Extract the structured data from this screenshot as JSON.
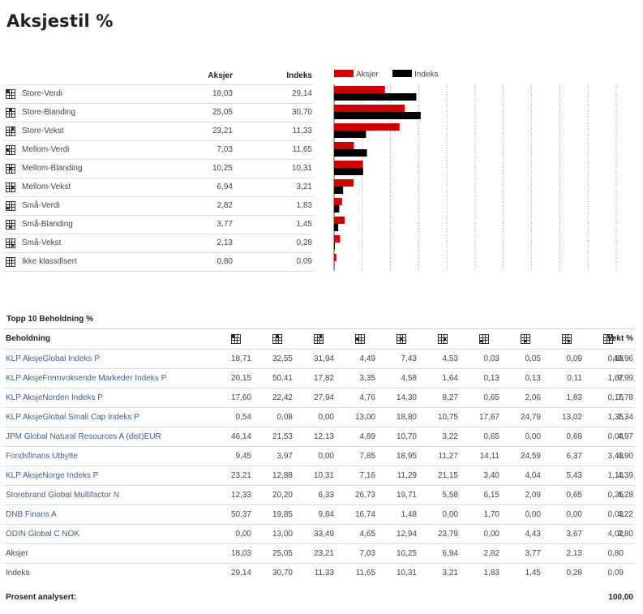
{
  "page_title": "Aksjestil %",
  "style_table": {
    "col_aksjer": "Aksjer",
    "col_indeks": "Indeks",
    "rows": [
      {
        "label": "Store-Verdi",
        "icon": "style-box-large-value-icon",
        "aksjer": "18,03",
        "indeks": "29,14"
      },
      {
        "label": "Store-Blanding",
        "icon": "style-box-large-blend-icon",
        "aksjer": "25,05",
        "indeks": "30,70"
      },
      {
        "label": "Store-Vekst",
        "icon": "style-box-large-growth-icon",
        "aksjer": "23,21",
        "indeks": "11,33"
      },
      {
        "label": "Mellom-Verdi",
        "icon": "style-box-mid-value-icon",
        "aksjer": "7,03",
        "indeks": "11,65"
      },
      {
        "label": "Mellom-Blanding",
        "icon": "style-box-mid-blend-icon",
        "aksjer": "10,25",
        "indeks": "10,31"
      },
      {
        "label": "Mellom-Vekst",
        "icon": "style-box-mid-growth-icon",
        "aksjer": "6,94",
        "indeks": "3,21"
      },
      {
        "label": "Små-Verdi",
        "icon": "style-box-small-value-icon",
        "aksjer": "2,82",
        "indeks": "1,83"
      },
      {
        "label": "Små-Blanding",
        "icon": "style-box-small-blend-icon",
        "aksjer": "3,77",
        "indeks": "1,45"
      },
      {
        "label": "Små-Vekst",
        "icon": "style-box-small-growth-icon",
        "aksjer": "2,13",
        "indeks": "0,28"
      },
      {
        "label": "Ikke klassifisert",
        "icon": "style-box-unclassified-icon",
        "aksjer": "0,80",
        "indeks": "0,09"
      }
    ]
  },
  "chart_data": {
    "type": "bar",
    "orientation": "horizontal",
    "categories": [
      "Store-Verdi",
      "Store-Blanding",
      "Store-Vekst",
      "Mellom-Verdi",
      "Mellom-Blanding",
      "Mellom-Vekst",
      "Små-Verdi",
      "Små-Blanding",
      "Små-Vekst",
      "Ikke klassifisert"
    ],
    "series": [
      {
        "name": "Aksjer",
        "color": "#cc0000",
        "values": [
          18.03,
          25.05,
          23.21,
          7.03,
          10.25,
          6.94,
          2.82,
          3.77,
          2.13,
          0.8
        ]
      },
      {
        "name": "Indeks",
        "color": "#000000",
        "values": [
          29.14,
          30.7,
          11.33,
          11.65,
          10.31,
          3.21,
          1.83,
          1.45,
          0.28,
          0.09
        ]
      }
    ],
    "xlim": [
      0,
      100
    ],
    "xticks": [
      "0",
      "10",
      "20",
      "30",
      "40",
      "50",
      "60",
      "70",
      "80",
      "90",
      "100"
    ],
    "grid": "vertical-dotted",
    "legend_position": "top-left"
  },
  "holdings": {
    "title": "Topp 10 Beholdning %",
    "col_name": "Beholdning",
    "col_weight": "Vekt %",
    "box_icons": [
      "style-box-large-value-icon",
      "style-box-large-blend-icon",
      "style-box-large-growth-icon",
      "style-box-mid-value-icon",
      "style-box-mid-blend-icon",
      "style-box-mid-growth-icon",
      "style-box-small-value-icon",
      "style-box-small-blend-icon",
      "style-box-small-growth-icon",
      "style-box-unclassified-icon"
    ],
    "rows": [
      {
        "name": "KLP AksjeGlobal Indeks P",
        "link": true,
        "values": [
          "18,71",
          "32,55",
          "31,94",
          "4,49",
          "7,43",
          "4,53",
          "0,03",
          "0,05",
          "0,09",
          "0,18"
        ],
        "weight": "40,96"
      },
      {
        "name": "KLP AksjeFremvoksende Markeder Indeks P",
        "link": true,
        "values": [
          "20,15",
          "50,41",
          "17,82",
          "3,35",
          "4,58",
          "1,64",
          "0,13",
          "0,13",
          "0,11",
          "1,67"
        ],
        "weight": "9,99"
      },
      {
        "name": "KLP AksjeNorden Indeks P",
        "link": true,
        "values": [
          "17,60",
          "22,42",
          "27,94",
          "4,76",
          "14,30",
          "8,27",
          "0,65",
          "2,06",
          "1,83",
          "0,16"
        ],
        "weight": "7,78"
      },
      {
        "name": "KLP AksjeGlobal Small Cap Indeks P",
        "link": true,
        "values": [
          "0,54",
          "0,08",
          "0,00",
          "13,00",
          "18,80",
          "10,75",
          "17,67",
          "24,79",
          "13,02",
          "1,35"
        ],
        "weight": "7,34"
      },
      {
        "name": "JPM Global Natural Resources A (dist)EUR",
        "link": true,
        "values": [
          "46,14",
          "21,53",
          "12,13",
          "4,89",
          "10,70",
          "3,22",
          "0,65",
          "0,00",
          "0,69",
          "0,04"
        ],
        "weight": "4,97"
      },
      {
        "name": "Fondsfinans Utbytte",
        "link": true,
        "values": [
          "9,45",
          "3,97",
          "0,00",
          "7,85",
          "18,95",
          "11,27",
          "14,11",
          "24,59",
          "6,37",
          "3,43"
        ],
        "weight": "4,90"
      },
      {
        "name": "KLP AksjeNorge Indeks P",
        "link": true,
        "values": [
          "23,21",
          "12,88",
          "10,31",
          "7,16",
          "11,29",
          "21,15",
          "3,40",
          "4,04",
          "5,43",
          "1,13"
        ],
        "weight": "4,39"
      },
      {
        "name": "Storebrand Global Multifactor N",
        "link": true,
        "values": [
          "12,33",
          "20,20",
          "6,33",
          "26,73",
          "19,71",
          "5,58",
          "6,15",
          "2,09",
          "0,65",
          "0,25"
        ],
        "weight": "4,28"
      },
      {
        "name": "DNB Finans A",
        "link": true,
        "values": [
          "50,37",
          "19,85",
          "9,84",
          "16,74",
          "1,48",
          "0,00",
          "1,70",
          "0,00",
          "0,00",
          "0,03"
        ],
        "weight": "4,22"
      },
      {
        "name": "ODIN Global C NOK",
        "link": true,
        "values": [
          "0,00",
          "13,00",
          "33,49",
          "4,65",
          "12,94",
          "23,79",
          "0,00",
          "4,43",
          "3,67",
          "4,02"
        ],
        "weight": "3,80"
      },
      {
        "name": "Aksjer",
        "link": false,
        "values": [
          "18,03",
          "25,05",
          "23,21",
          "7,03",
          "10,25",
          "6,94",
          "2,82",
          "3,77",
          "2,13",
          "0,80"
        ],
        "weight": ""
      },
      {
        "name": "Indeks",
        "link": false,
        "values": [
          "29,14",
          "30,70",
          "11,33",
          "11,65",
          "10,31",
          "3,21",
          "1,83",
          "1,45",
          "0,28",
          "0,09"
        ],
        "weight": ""
      }
    ],
    "footer_label": "Prosent analysert:",
    "footer_value": "100,00"
  }
}
